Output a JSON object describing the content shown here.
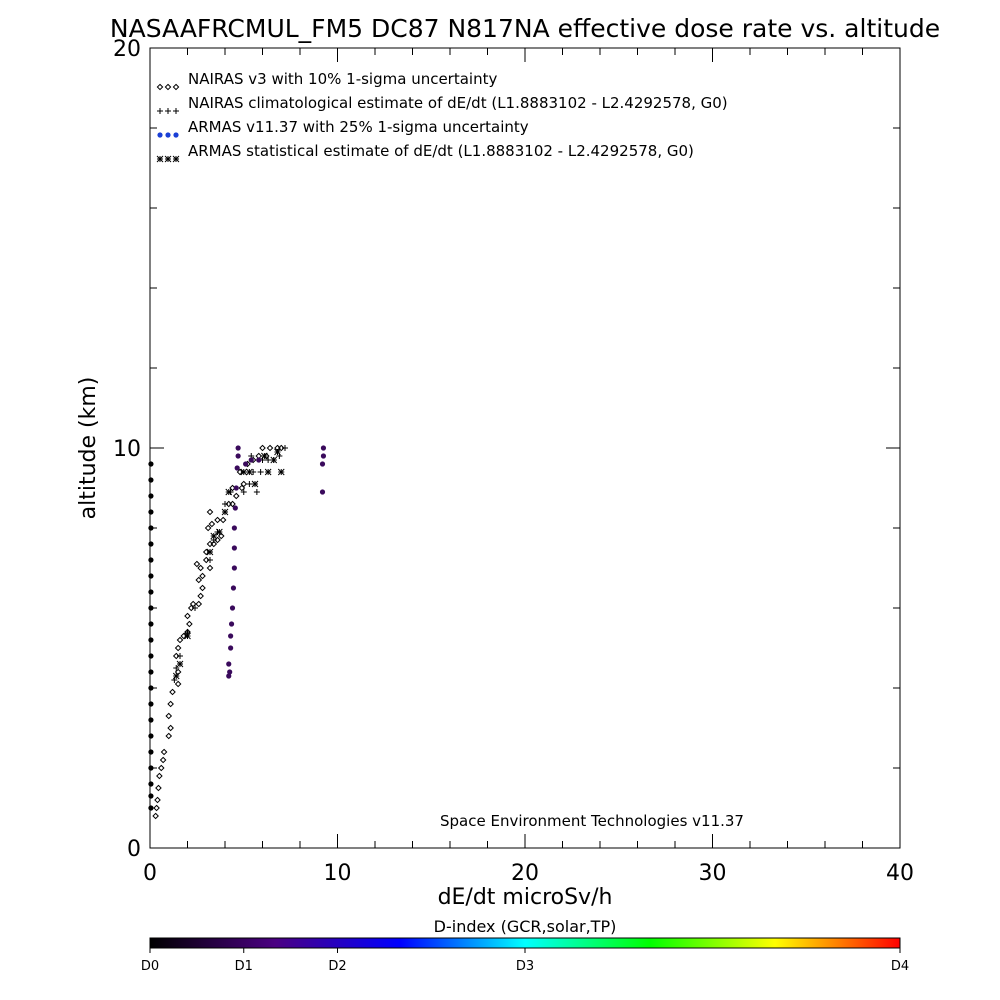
{
  "chart_data": {
    "type": "scatter",
    "title": "NASAAFRCMUL_FM5 DC87 N817NA effective dose rate vs. altitude",
    "xlabel": "dE/dt microSv/h",
    "ylabel": "altitude (km)",
    "xlim": [
      0,
      40
    ],
    "ylim": [
      0,
      20
    ],
    "x_ticks": [
      "0",
      "10",
      "20",
      "30",
      "40"
    ],
    "y_ticks": [
      "0",
      "10",
      "20"
    ],
    "legend_position": "top-left",
    "grid": false,
    "annotation": "Space Environment Technologies v11.37",
    "series": [
      {
        "name": "NAIRAS v3 with 10% 1-sigma uncertainty",
        "marker": "diamond",
        "color": "#000000",
        "points": [
          [
            0.3,
            0.8
          ],
          [
            0.35,
            1.0
          ],
          [
            0.4,
            1.2
          ],
          [
            0.45,
            1.5
          ],
          [
            0.5,
            1.8
          ],
          [
            0.6,
            2.0
          ],
          [
            0.7,
            2.2
          ],
          [
            0.75,
            2.4
          ],
          [
            1.0,
            2.8
          ],
          [
            1.1,
            3.0
          ],
          [
            1.0,
            3.3
          ],
          [
            1.1,
            3.6
          ],
          [
            1.2,
            3.9
          ],
          [
            1.5,
            4.1
          ],
          [
            1.5,
            4.4
          ],
          [
            1.4,
            4.8
          ],
          [
            1.5,
            5.0
          ],
          [
            1.6,
            5.2
          ],
          [
            1.8,
            5.3
          ],
          [
            2.0,
            5.4
          ],
          [
            2.1,
            5.6
          ],
          [
            2.0,
            5.8
          ],
          [
            2.2,
            6.0
          ],
          [
            2.3,
            6.1
          ],
          [
            2.6,
            6.1
          ],
          [
            2.7,
            6.3
          ],
          [
            2.8,
            6.5
          ],
          [
            2.6,
            6.7
          ],
          [
            2.8,
            6.8
          ],
          [
            2.7,
            7.0
          ],
          [
            2.5,
            7.1
          ],
          [
            3.0,
            7.2
          ],
          [
            3.2,
            7.0
          ],
          [
            3.0,
            7.4
          ],
          [
            3.2,
            7.6
          ],
          [
            3.4,
            7.6
          ],
          [
            3.6,
            7.7
          ],
          [
            3.8,
            7.8
          ],
          [
            3.1,
            8.0
          ],
          [
            3.3,
            8.1
          ],
          [
            3.6,
            8.2
          ],
          [
            3.9,
            8.2
          ],
          [
            3.2,
            8.4
          ],
          [
            4.2,
            8.6
          ],
          [
            4.4,
            8.6
          ],
          [
            4.6,
            8.8
          ],
          [
            4.4,
            9.0
          ],
          [
            4.9,
            9.0
          ],
          [
            5.0,
            9.1
          ],
          [
            4.8,
            9.4
          ],
          [
            5.2,
            9.6
          ],
          [
            5.5,
            9.7
          ],
          [
            5.8,
            9.8
          ],
          [
            6.2,
            9.8
          ],
          [
            6.0,
            10.0
          ],
          [
            6.4,
            10.0
          ],
          [
            6.8,
            10.0
          ],
          [
            7.0,
            10.0
          ]
        ]
      },
      {
        "name": "NAIRAS climatological estimate of dE/dt (L1.8883102 - L2.4292578, G0)",
        "marker": "plus",
        "color": "#000000",
        "points": [
          [
            1.3,
            4.2
          ],
          [
            1.4,
            4.5
          ],
          [
            1.6,
            4.8
          ],
          [
            2.0,
            5.4
          ],
          [
            2.4,
            6.0
          ],
          [
            3.2,
            7.2
          ],
          [
            3.4,
            7.7
          ],
          [
            3.6,
            7.9
          ],
          [
            4.0,
            8.6
          ],
          [
            4.3,
            8.9
          ],
          [
            5.0,
            8.9
          ],
          [
            5.3,
            9.1
          ],
          [
            5.6,
            9.1
          ],
          [
            5.7,
            8.9
          ],
          [
            5.5,
            9.4
          ],
          [
            5.9,
            9.4
          ],
          [
            6.0,
            9.7
          ],
          [
            6.3,
            9.7
          ],
          [
            6.6,
            9.7
          ],
          [
            6.9,
            9.8
          ],
          [
            7.2,
            10.0
          ],
          [
            5.4,
            9.8
          ]
        ]
      },
      {
        "name": "ARMAS v11.37 with 25% 1-sigma uncertainty",
        "marker": "dot",
        "color": "#1a3fd6",
        "points": []
      },
      {
        "name": "ARMAS statistical estimate of dE/dt (L1.8883102 - L2.4292578, G0)",
        "marker": "star",
        "color": "#000000",
        "points": [
          [
            1.4,
            4.3
          ],
          [
            1.6,
            4.6
          ],
          [
            2.0,
            5.3
          ],
          [
            3.2,
            7.4
          ],
          [
            3.4,
            7.8
          ],
          [
            3.7,
            7.9
          ],
          [
            4.0,
            8.4
          ],
          [
            4.2,
            8.9
          ],
          [
            5.0,
            9.4
          ],
          [
            5.3,
            9.4
          ],
          [
            5.6,
            9.1
          ],
          [
            6.3,
            9.4
          ],
          [
            6.6,
            9.7
          ],
          [
            6.8,
            9.9
          ],
          [
            6.1,
            9.8
          ],
          [
            7.0,
            9.4
          ]
        ]
      }
    ],
    "armas_measured": {
      "color_by": "D-index",
      "points": [
        [
          4.2,
          4.3
        ],
        [
          4.25,
          4.4
        ],
        [
          4.2,
          4.6
        ],
        [
          4.3,
          5.0
        ],
        [
          4.3,
          5.3
        ],
        [
          4.35,
          5.6
        ],
        [
          4.4,
          6.0
        ],
        [
          4.45,
          6.5
        ],
        [
          4.5,
          7.0
        ],
        [
          4.5,
          7.5
        ],
        [
          4.5,
          8.0
        ],
        [
          4.55,
          8.5
        ],
        [
          4.6,
          9.0
        ],
        [
          4.65,
          9.5
        ],
        [
          4.7,
          9.8
        ],
        [
          4.7,
          10.0
        ],
        [
          5.1,
          9.6
        ],
        [
          5.4,
          9.7
        ],
        [
          5.8,
          9.7
        ],
        [
          9.2,
          8.9
        ],
        [
          9.2,
          9.6
        ],
        [
          9.25,
          9.8
        ],
        [
          9.25,
          10.0
        ]
      ],
      "near_zero_points": [
        [
          0.05,
          1.0
        ],
        [
          0.05,
          1.3
        ],
        [
          0.05,
          1.6
        ],
        [
          0.05,
          2.0
        ],
        [
          0.05,
          2.4
        ],
        [
          0.05,
          2.8
        ],
        [
          0.05,
          3.2
        ],
        [
          0.05,
          3.6
        ],
        [
          0.05,
          4.0
        ],
        [
          0.05,
          4.4
        ],
        [
          0.05,
          4.8
        ],
        [
          0.05,
          5.2
        ],
        [
          0.05,
          5.6
        ],
        [
          0.05,
          6.0
        ],
        [
          0.05,
          6.4
        ],
        [
          0.05,
          6.8
        ],
        [
          0.05,
          7.2
        ],
        [
          0.05,
          7.6
        ],
        [
          0.05,
          8.0
        ],
        [
          0.05,
          8.4
        ],
        [
          0.05,
          8.8
        ],
        [
          0.05,
          9.2
        ],
        [
          0.05,
          9.6
        ]
      ]
    },
    "colorbar": {
      "title": "D-index (GCR,solar,TP)",
      "labels": [
        "D0",
        "D1",
        "D2",
        "D3",
        "D4"
      ],
      "label_positions": [
        0,
        0.125,
        0.25,
        0.5,
        1.0
      ],
      "colors": [
        "#000000",
        "#4b0082",
        "#0000ff",
        "#00ffff",
        "#00ff00",
        "#ffff00",
        "#ff0000"
      ]
    }
  }
}
